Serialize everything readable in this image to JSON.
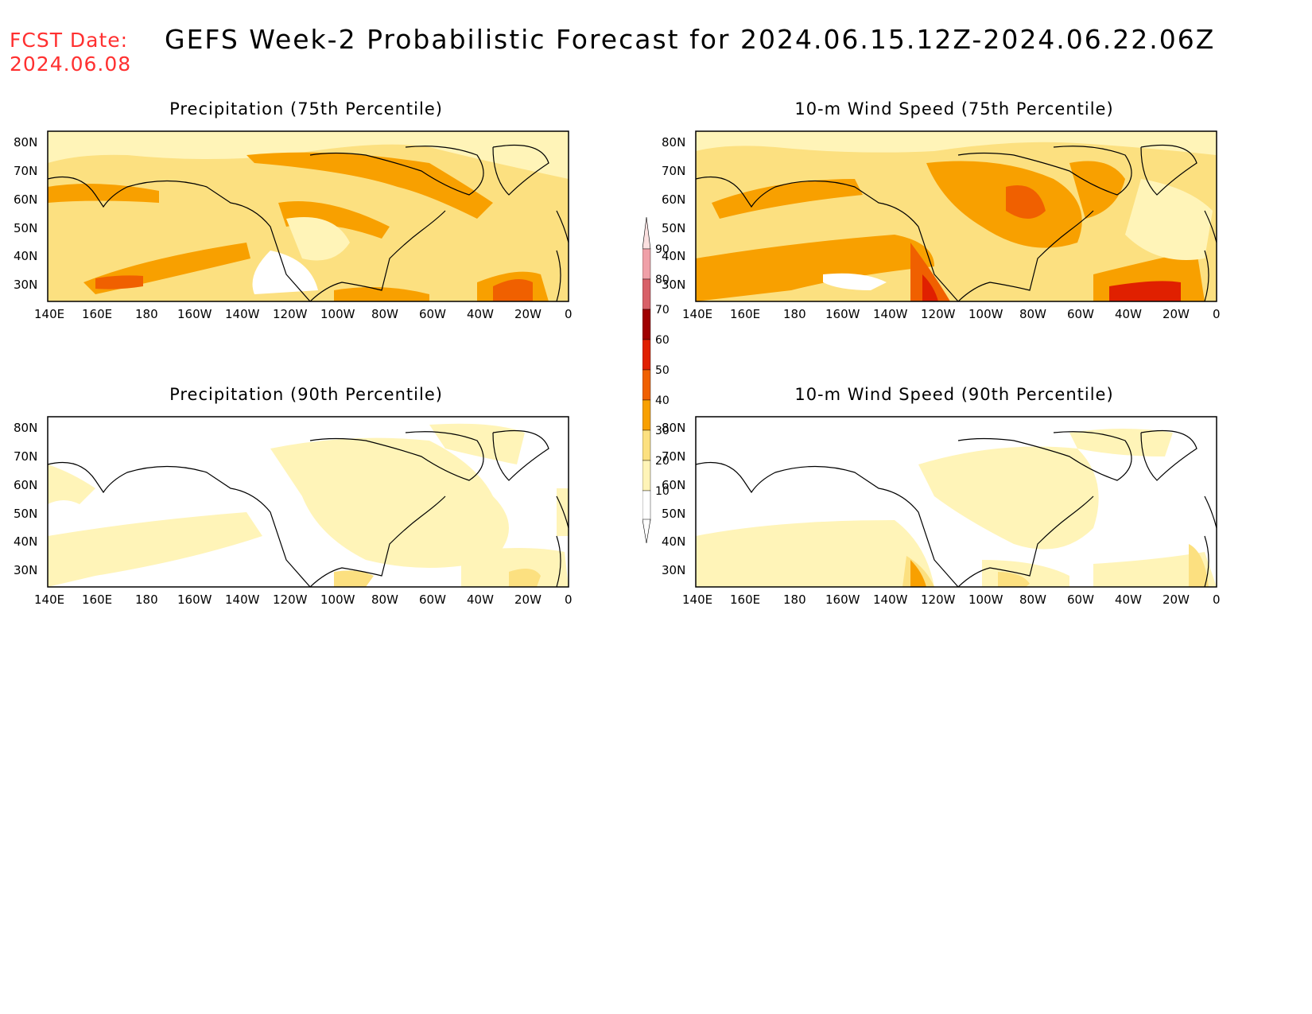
{
  "header": {
    "fcst_label": "FCST Date:",
    "fcst_date": "2024.06.08",
    "title": "GEFS Week-2 Probabilistic Forecast for 2024.06.15.12Z-2024.06.22.06Z"
  },
  "axes": {
    "lon_ticks": [
      "140E",
      "160E",
      "180",
      "160W",
      "140W",
      "120W",
      "100W",
      "80W",
      "60W",
      "40W",
      "20W",
      "0"
    ],
    "lat_ticks": [
      "80N",
      "70N",
      "60N",
      "50N",
      "40N",
      "30N"
    ]
  },
  "panels": [
    {
      "id": "precip75",
      "title": "Precipitation (75th Percentile)"
    },
    {
      "id": "wind75",
      "title": "10-m Wind Speed (75th Percentile)"
    },
    {
      "id": "precip90",
      "title": "Precipitation (90th Percentile)"
    },
    {
      "id": "wind90",
      "title": "10-m Wind Speed (90th Percentile)"
    }
  ],
  "legend": {
    "levels": [
      "90",
      "80",
      "70",
      "60",
      "50",
      "40",
      "30",
      "20",
      "10"
    ],
    "colors": [
      "#f0a0a8",
      "#d86068",
      "#a00000",
      "#e02000",
      "#f06000",
      "#f8a000",
      "#fce080",
      "#fff4b8",
      "#ffffff"
    ]
  },
  "palette": {
    "c10": "#fff4b8",
    "c20": "#fce080",
    "c30": "#f8a000",
    "c40": "#f06000",
    "c50": "#e02000",
    "c60": "#a00000"
  }
}
